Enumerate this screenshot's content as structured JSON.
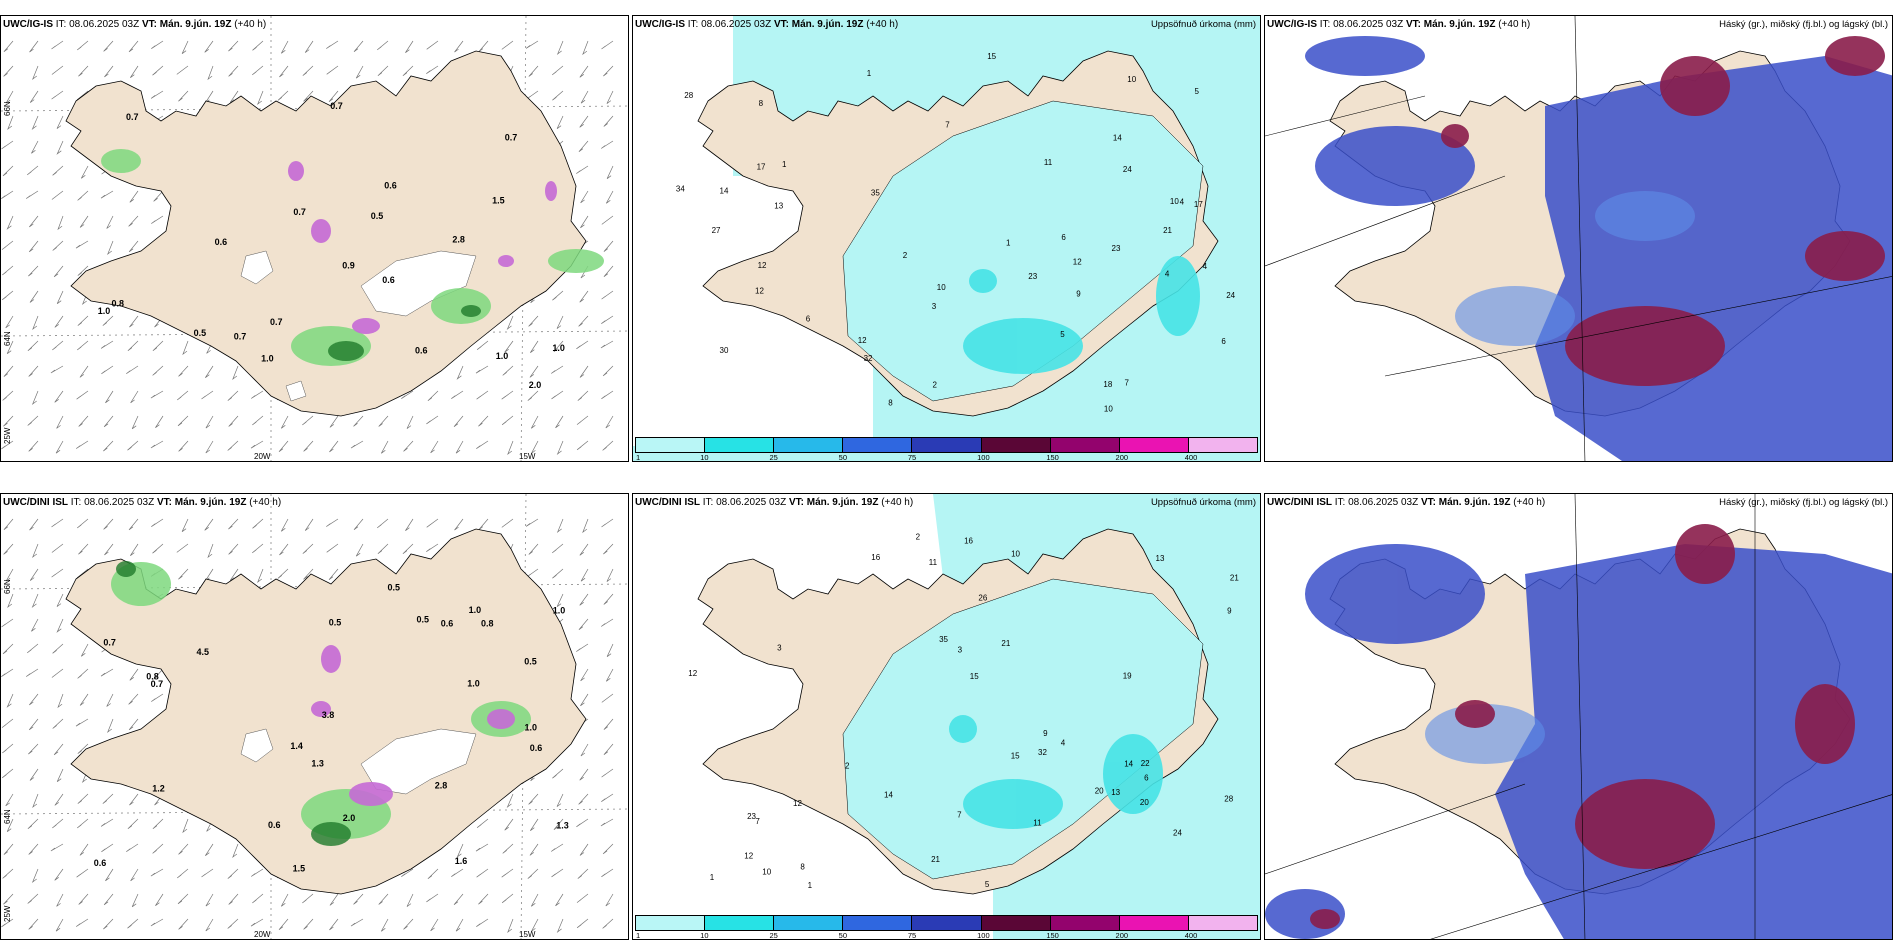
{
  "header_common": {
    "it_label": "IT:",
    "it_value": "08.06.2025 03Z",
    "vt_label": "VT:",
    "vt_value": "Mán. 9.jún. 19Z",
    "lead": "(+40 h)"
  },
  "rows": [
    {
      "model": "UWC/IG-IS",
      "panels": {
        "weather": {
          "axis_labels": {
            "lat_a": "66N",
            "lat_b": "64N",
            "lat_c": "25W",
            "lon_a": "20W",
            "lon_b": "15W"
          },
          "values": [
            "0.5",
            "0.7",
            "0.6",
            "1.0",
            "0.6",
            "2.8",
            "0.6",
            "2.0",
            "1.5",
            "0.7",
            "0.7",
            "1.0",
            "0.8",
            "1.0",
            "0.9",
            "0.6",
            "1.0",
            "0.7",
            "0.7",
            "0.5",
            "0.7"
          ]
        },
        "precip": {
          "title": "Uppsöfnuð úrkoma (mm)",
          "numbers": [
            "3",
            "2",
            "2",
            "5",
            "1",
            "7",
            "8",
            "4",
            "6",
            "7",
            "5",
            "8",
            "10",
            "10",
            "12",
            "6",
            "12",
            "13",
            "14",
            "24",
            "23",
            "35",
            "23",
            "11",
            "10",
            "27",
            "32",
            "34",
            "28",
            "24",
            "21",
            "30",
            "18",
            "15",
            "4",
            "1",
            "14",
            "9",
            "12",
            "17",
            "17",
            "12",
            "6",
            "10",
            "1",
            "4"
          ]
        },
        "clouds": {
          "title": "Háský (gr.), miðský (fj.bl.) og lágský (bl.)"
        }
      }
    },
    {
      "model": "UWC/DINI ISL",
      "panels": {
        "weather": {
          "axis_labels": {
            "lat_a": "66N",
            "lat_b": "64N",
            "lat_c": "25W",
            "lon_a": "20W",
            "lon_b": "15W"
          },
          "values": [
            "1.3",
            "0.7",
            "0.5",
            "1.0",
            "1.2",
            "0.5",
            "0.8",
            "0.6",
            "0.6",
            "1.4",
            "1.5",
            "0.6",
            "0.7",
            "1.3",
            "3.8",
            "4.5",
            "0.5",
            "1.6",
            "1.0",
            "0.6",
            "0.8",
            "0.5",
            "1.0",
            "2.0",
            "2.8",
            "1.0"
          ]
        },
        "precip": {
          "title": "Uppsöfnuð úrkoma (mm)",
          "numbers": [
            "1",
            "2",
            "3",
            "5",
            "10",
            "4",
            "6",
            "7",
            "11",
            "23",
            "12",
            "15",
            "14",
            "16",
            "26",
            "15",
            "21",
            "8",
            "12",
            "14",
            "13",
            "10",
            "9",
            "7",
            "28",
            "32",
            "22",
            "21",
            "24",
            "20",
            "13",
            "35",
            "19",
            "21",
            "9",
            "12",
            "16",
            "20",
            "11",
            "3",
            "2",
            "1"
          ]
        },
        "clouds": {
          "title": "Háský (gr.), miðský (fj.bl.) og lágský (bl.)"
        }
      }
    }
  ],
  "colorbar": {
    "labels": [
      "1",
      "10",
      "25",
      "50",
      "75",
      "100",
      "150",
      "200",
      "400"
    ],
    "colors": [
      "#b9f6f6",
      "#27e2e5",
      "#27b9ea",
      "#2f67e0",
      "#2a3bb5",
      "#5a0636",
      "#93036d",
      "#ea13b2",
      "#f2b3ee"
    ]
  },
  "colors": {
    "land": "#f1e2cf",
    "sea_precip": "#b5f5f4",
    "precip_mid": "#46e3e6",
    "cloud_blue": "#3a4fc9",
    "cloud_light": "#5e8ee8",
    "cloud_dark": "#8a1d4a",
    "green": "#7ed87e",
    "green_dark": "#1f7a2b",
    "purple": "#c56ad5"
  }
}
